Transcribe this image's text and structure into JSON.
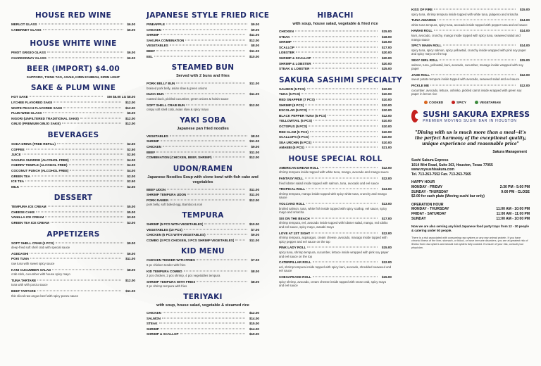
{
  "col1": {
    "house_red": {
      "title": "HOUSE RED WINE",
      "items": [
        {
          "name": "Merlot glass",
          "price": "$6.00"
        },
        {
          "name": "Cabernet glass",
          "price": "$6.00"
        }
      ]
    },
    "house_white": {
      "title": "HOUSE WHITE WINE",
      "items": [
        {
          "name": "Pinot grigio glass",
          "price": "$6.00"
        },
        {
          "name": "Chardonnay glass",
          "price": "$6.00"
        }
      ]
    },
    "beer": {
      "title": "BEER (IMPORT) $4.00",
      "note": "SAPPORO, TSING TAO, ASAHI, KIRIN ICHIBAN, KIRIN LIGHT"
    },
    "sake": {
      "title": "SAKE & PLUM WINE",
      "items": [
        {
          "name": "Hot sake",
          "price": "SM $5.00 LG $8.00"
        },
        {
          "name": "Lychee flavored sake",
          "price": "$12.00"
        },
        {
          "name": "White peach flavored sake",
          "price": "$12.00"
        },
        {
          "name": "Plum wine glass",
          "price": "$6.00"
        },
        {
          "name": "Nigori (unfiltered traditional sake)",
          "price": "$12.00"
        },
        {
          "name": "Ginjo (premium ginjo sake)",
          "price": "$12.00"
        }
      ]
    },
    "beverages": {
      "title": "BEVERAGES",
      "items": [
        {
          "name": "Soda drink (Free Refill)",
          "price": "$2.50"
        },
        {
          "name": "Coffee",
          "price": "$2.50"
        },
        {
          "name": "Juice",
          "price": "$2.50"
        },
        {
          "name": "Sakura sunrise (Alcohol Free)",
          "price": "$4.00"
        },
        {
          "name": "Cherry temple (Alcohol Free)",
          "price": "$4.00"
        },
        {
          "name": "Coconut punch (Alcohol Free)",
          "price": "$4.00"
        },
        {
          "name": "Green tea",
          "price": "$2.00"
        },
        {
          "name": "Ice tea",
          "price": "$2.50"
        },
        {
          "name": "Milk",
          "price": "$2.50"
        }
      ]
    },
    "dessert": {
      "title": "DESSERT",
      "items": [
        {
          "name": "Tempura ice cream",
          "price": "$5.00"
        },
        {
          "name": "Cheese cake",
          "price": "$5.00"
        },
        {
          "name": "Vanilla ice cream",
          "price": "$3.00"
        },
        {
          "name": "Green tea ice cream",
          "price": "$3.00"
        }
      ]
    },
    "appetizers": {
      "title": "APPETIZERS",
      "items": [
        {
          "name": "Soft shell crab (1 pcs)",
          "price": "$9.00",
          "desc": "deep-fried soft shell crab with special sauce"
        },
        {
          "name": "Agedashi",
          "price": "$6.00"
        },
        {
          "name": "Poki tuna",
          "price": "$11.00",
          "desc": "raw tuna with sweet spicy sauce"
        },
        {
          "name": "Kani cucumber salad",
          "price": "$8.00",
          "desc": "crab stick, cucumber with house spicy mayo"
        },
        {
          "name": "Tuna tartare",
          "price": "$12.00",
          "desc": "tuna with with ponzu sauce"
        },
        {
          "name": "Beef tartare",
          "price": "$11.00",
          "desc": "thin sliced raw angus beef with spicy ponzu sauce"
        }
      ]
    }
  },
  "col2": {
    "fried_rice": {
      "title": "JAPANESE STYLE FRIED RICE",
      "items": [
        {
          "name": "Pineapple",
          "price": "$9.00"
        },
        {
          "name": "Chicken",
          "price": "$9.00"
        },
        {
          "name": "Shrimp",
          "price": "$11.00"
        },
        {
          "name": "Sakura combination",
          "price": "$12.00"
        },
        {
          "name": "Vegetables",
          "price": "$8.00"
        },
        {
          "name": "Beef",
          "price": "$11.00"
        },
        {
          "name": "Eel",
          "price": "$10.00"
        }
      ]
    },
    "steamed_bun": {
      "title": "STEAMED BUN",
      "sub": "Served with 2 buns and fries",
      "items": [
        {
          "name": "Pork belly bun",
          "price": "$11.00",
          "desc": "braised pork belly, asian slaw & green onions"
        },
        {
          "name": "Duck bun",
          "price": "$11.00",
          "desc": "roasted duck, pickled cucumber, green onions & hoisin sauce"
        },
        {
          "name": "Soft shell crab bun",
          "price": "$12.00",
          "desc": "crispy soft shell crab, asian slaw & spicy mayo"
        }
      ]
    },
    "yaki_soba": {
      "title": "YAKI SOBA",
      "sub": "Japanese pan fried noodles",
      "items": [
        {
          "name": "Vegetables",
          "price": "$8.00"
        },
        {
          "name": "Shrimp",
          "price": "$11.00"
        },
        {
          "name": "Chicken",
          "price": "$9.00"
        },
        {
          "name": "Beef",
          "price": "$11.00"
        },
        {
          "name": "Combination (Chicken, Beef, Shrimp)",
          "price": "$12.00"
        }
      ]
    },
    "udon": {
      "title": "UDON/RAMEN",
      "sub": "Japanese Noodles Soup with slone bowl with fish cake and vegetables",
      "items": [
        {
          "name": "Beef udon",
          "price": "$11.00"
        },
        {
          "name": "Shrimp tempura udon",
          "price": "$11.00"
        },
        {
          "name": "Pork ramen",
          "price": "$12.00",
          "desc": "pork belly, soft boiled egg, Bamboo & nori"
        }
      ]
    },
    "tempura": {
      "title": "TEMPURA",
      "items": [
        {
          "name": "Shrimp (5 pcs with vegetables)",
          "price": "$10.00"
        },
        {
          "name": "Vegetables (10 pcs)",
          "price": "$7.00"
        },
        {
          "name": "Chicken (5 pcs with vegetables)",
          "price": "$9.00"
        },
        {
          "name": "Combo (3 pcs chicken, 3 pcs shrimp vegetables)",
          "price": "$11.00"
        }
      ]
    },
    "kid_menu": {
      "title": "KID MENU",
      "items": [
        {
          "name": "Chicken tender with fries",
          "price": "$7.00",
          "desc": "5 pc chicken tender with fries"
        },
        {
          "name": "Kid tempura combo",
          "price": "$8.00",
          "desc": "2 pcs chicken, 2 pcs shrimp, 4 pcs vegetables tempura"
        },
        {
          "name": "Shrimp tempura with fries",
          "price": "$8.00",
          "desc": "2 pc shrimp tempura with fries"
        }
      ]
    },
    "teriyaki": {
      "title": "TERIYAKI",
      "sub": "with soup, house salad, vegetable & steamed rice",
      "items": [
        {
          "name": "Chicken",
          "price": "$12.00"
        },
        {
          "name": "Salmon",
          "price": "$14.00"
        },
        {
          "name": "Steak",
          "price": "$15.00"
        },
        {
          "name": "Shrimp",
          "price": "$14.00"
        },
        {
          "name": "Shrimp & scallop",
          "price": "$19.00"
        }
      ]
    }
  },
  "col3": {
    "hibachi": {
      "title": "HIBACHI",
      "sub": "with soup, house salad, vegetable & fried rice",
      "items": [
        {
          "name": "Chicken",
          "price": "$15.00"
        },
        {
          "name": "Steak",
          "price": "$18.00"
        },
        {
          "name": "Shrimp",
          "price": "$16.00"
        },
        {
          "name": "Scallop",
          "price": "$17.00"
        },
        {
          "name": "Lobster",
          "price": "$20.00"
        },
        {
          "name": "Shrimp & scallop",
          "price": "$20.00"
        },
        {
          "name": "Shrimp & lobster",
          "price": "$20.00"
        },
        {
          "name": "Steak & lobster",
          "price": "$25.00"
        }
      ]
    },
    "sashimi": {
      "title": "SAKURA SASHIMI SPECIALTY",
      "items": [
        {
          "name": "Salmon (5 pcs)",
          "price": "$10.00"
        },
        {
          "name": "Tuna (5 pcs)",
          "price": "$10.00"
        },
        {
          "name": "Red snapper (7 pcs)",
          "price": "$10.00"
        },
        {
          "name": "Shrimp (5 pcs)",
          "price": "$10.00"
        },
        {
          "name": "Escolar (5 pcs)",
          "price": "$10.00"
        },
        {
          "name": "Black pepper tuna (5 pcs)",
          "price": "$12.00"
        },
        {
          "name": "Yellowtail (5 pcs)",
          "price": "$10.00"
        },
        {
          "name": "Octopus (5 pcs)",
          "price": "$10.00"
        },
        {
          "name": "Red clam (5 pcs)",
          "price": "$10.00"
        },
        {
          "name": "Scallops (5 pcs)",
          "price": "$10.00"
        },
        {
          "name": "Sea urchin (5 pcs)",
          "price": "$10.00"
        },
        {
          "name": "Amaebi (5 pcs)",
          "price": "$21.00"
        }
      ]
    },
    "special_roll": {
      "title": "HOUSE SPECIAL ROLL",
      "items": [
        {
          "name": "American dream roll",
          "price": "$12.00",
          "desc": "shrimp tempura inside topped with white tuna, mango, avocado and mango sauce"
        },
        {
          "name": "Fantasy roll",
          "price": "$12.00",
          "desc": "fried lobster salad inside topped with salmon, tuna, avocado and eel sauce"
        },
        {
          "name": "Tropical roll",
          "price": "$13.00",
          "desc": "shrimp tempura, mango inside topped with spicy white tuna, crunchy and mango sauce"
        },
        {
          "name": "Volcano roll",
          "price": "$13.00",
          "desc": "broiled salmon, tuna, white fish inside topped with spicy scallop, eel sauce, spicy mayo and sriracha"
        },
        {
          "name": "Six on the beach",
          "price": "$17.00",
          "desc": "shrimp tempura, eel, avocado inside topped with lobster salad, mango, red tobiko and eel sauce, spicy mayo, wasabi mayo"
        },
        {
          "name": "Love at 1st sight",
          "price": "$12.00",
          "desc": "shrimp tempura, asparagus, cream cheese, avocado, masago inside topped with spicy pepper and eel sauce on the top"
        },
        {
          "name": "Pink lady roll",
          "price": "$15.00",
          "desc": "spicy tuna, shrimp tempura, cucumber, lettuce inside wrapped with pink soy paper and eel sauce on the top"
        },
        {
          "name": "Caterpillar roll",
          "price": "$12.00",
          "desc": "eel, shrimp tempura inside topped with spicy kani, avocado, shredded seaweed and eel sauce"
        },
        {
          "name": "Chesapeake roll",
          "price": "$15.00",
          "desc": "spicy shrimp, avocado, cream cheese inside topped with snow crab, spicy mayo and eel sauce"
        }
      ]
    }
  },
  "col4": {
    "rolls": [
      {
        "name": "Kiss of fire",
        "price": "$15.00",
        "desc": "spicy tuna, shrimp tempura inside topped with white tuna, jalapeno and sriracha"
      },
      {
        "name": "Tuna amazing",
        "price": "$14.00",
        "desc": "white tuna tempura, spicy tuna, avocado inside topped with pepper tuna and eel sauce"
      },
      {
        "name": "Hawaii roll",
        "price": "$14.00",
        "desc": "kani, avocado, crunchy, mango inside topped with spicy tuna, seaweed salad and mango sauce"
      },
      {
        "name": "Spicy mama roll",
        "price": "$14.00",
        "desc": "spicy tuna, spicy salmon, spicy yellowtail, crunchy inside wrapped with pink soy paper and spicy mayo on the top"
      },
      {
        "name": "Sexy girl roll",
        "price": "$15.00",
        "desc": "salmon, tuna, yellowtail, kani, avocado, cucumber, masago inside wrapped with soy paper"
      },
      {
        "name": "Jade roll",
        "price": "$12.00",
        "desc": "sweet potato tempura inside topped with avocado, seaweed salad and eel sauce"
      },
      {
        "name": "Pickle me",
        "price": "$12.00",
        "desc": "cucumber, avocado, lettuce, oshinko, pickled carrot inside wrapped with green soy paper in lemon rice"
      }
    ],
    "legend": {
      "cooked": "COOKED",
      "spicy": "SPICY",
      "vegetarian": "VEGETARIAN"
    },
    "brand": {
      "name": "SUSHI SAKURA EXPRESS",
      "tagline": "PREMIER MOVING SUSHI BAR IN HOUSTON"
    },
    "quote": "\"Dining with us is much more than a meal--it's the perfect harmony of the exceptional quality, unique experience and reasonable price\"",
    "quote_sig": "Sakura Management",
    "address": [
      "Sushi Sakura Express",
      "1014 Wirt Road, Suite 263, Houston, Texas 77055",
      "www.mysushisakura.com"
    ],
    "happy_hour": {
      "title": "HAPPY HOUR",
      "rows": [
        {
          "day": "MONDAY - FRIDAY",
          "time": "2:30 PM - 5:00 PM"
        },
        {
          "day": "SUNDAY - THURSDAY",
          "time": "9:00 PM - CLOSE"
        }
      ],
      "note": "$2.00 for each plate (Moving sushi bar only)"
    },
    "operation": {
      "title": "OPERATION HOUR",
      "rows": [
        {
          "day": "MONDAY - THURSDAY",
          "time": "11:00 AM - 10:00 PM"
        },
        {
          "day": "FRIDAY - SATURDAY",
          "time": "11:00 AM - 11:00 PM"
        },
        {
          "day": "SUNDAY",
          "time": "11:00 AM - 10:00 PM"
        }
      ]
    },
    "catering": "Now we are also serving any kind Japanese food party trays from 12 - 30 people & catering under 50 people.",
    "fine": "There is a risk associated with consuming raw oysters or any raw animal protein. If you have chronic illness of the liver, stomach, or blood, or have immune disorders, you are at greatest risk of illness from raw oysters and should eat oysters fully cooked. If unsure of your risk, consult your physician.",
    "tel": "Tel. 713-263-7552  Fax. 713-263-7565"
  }
}
